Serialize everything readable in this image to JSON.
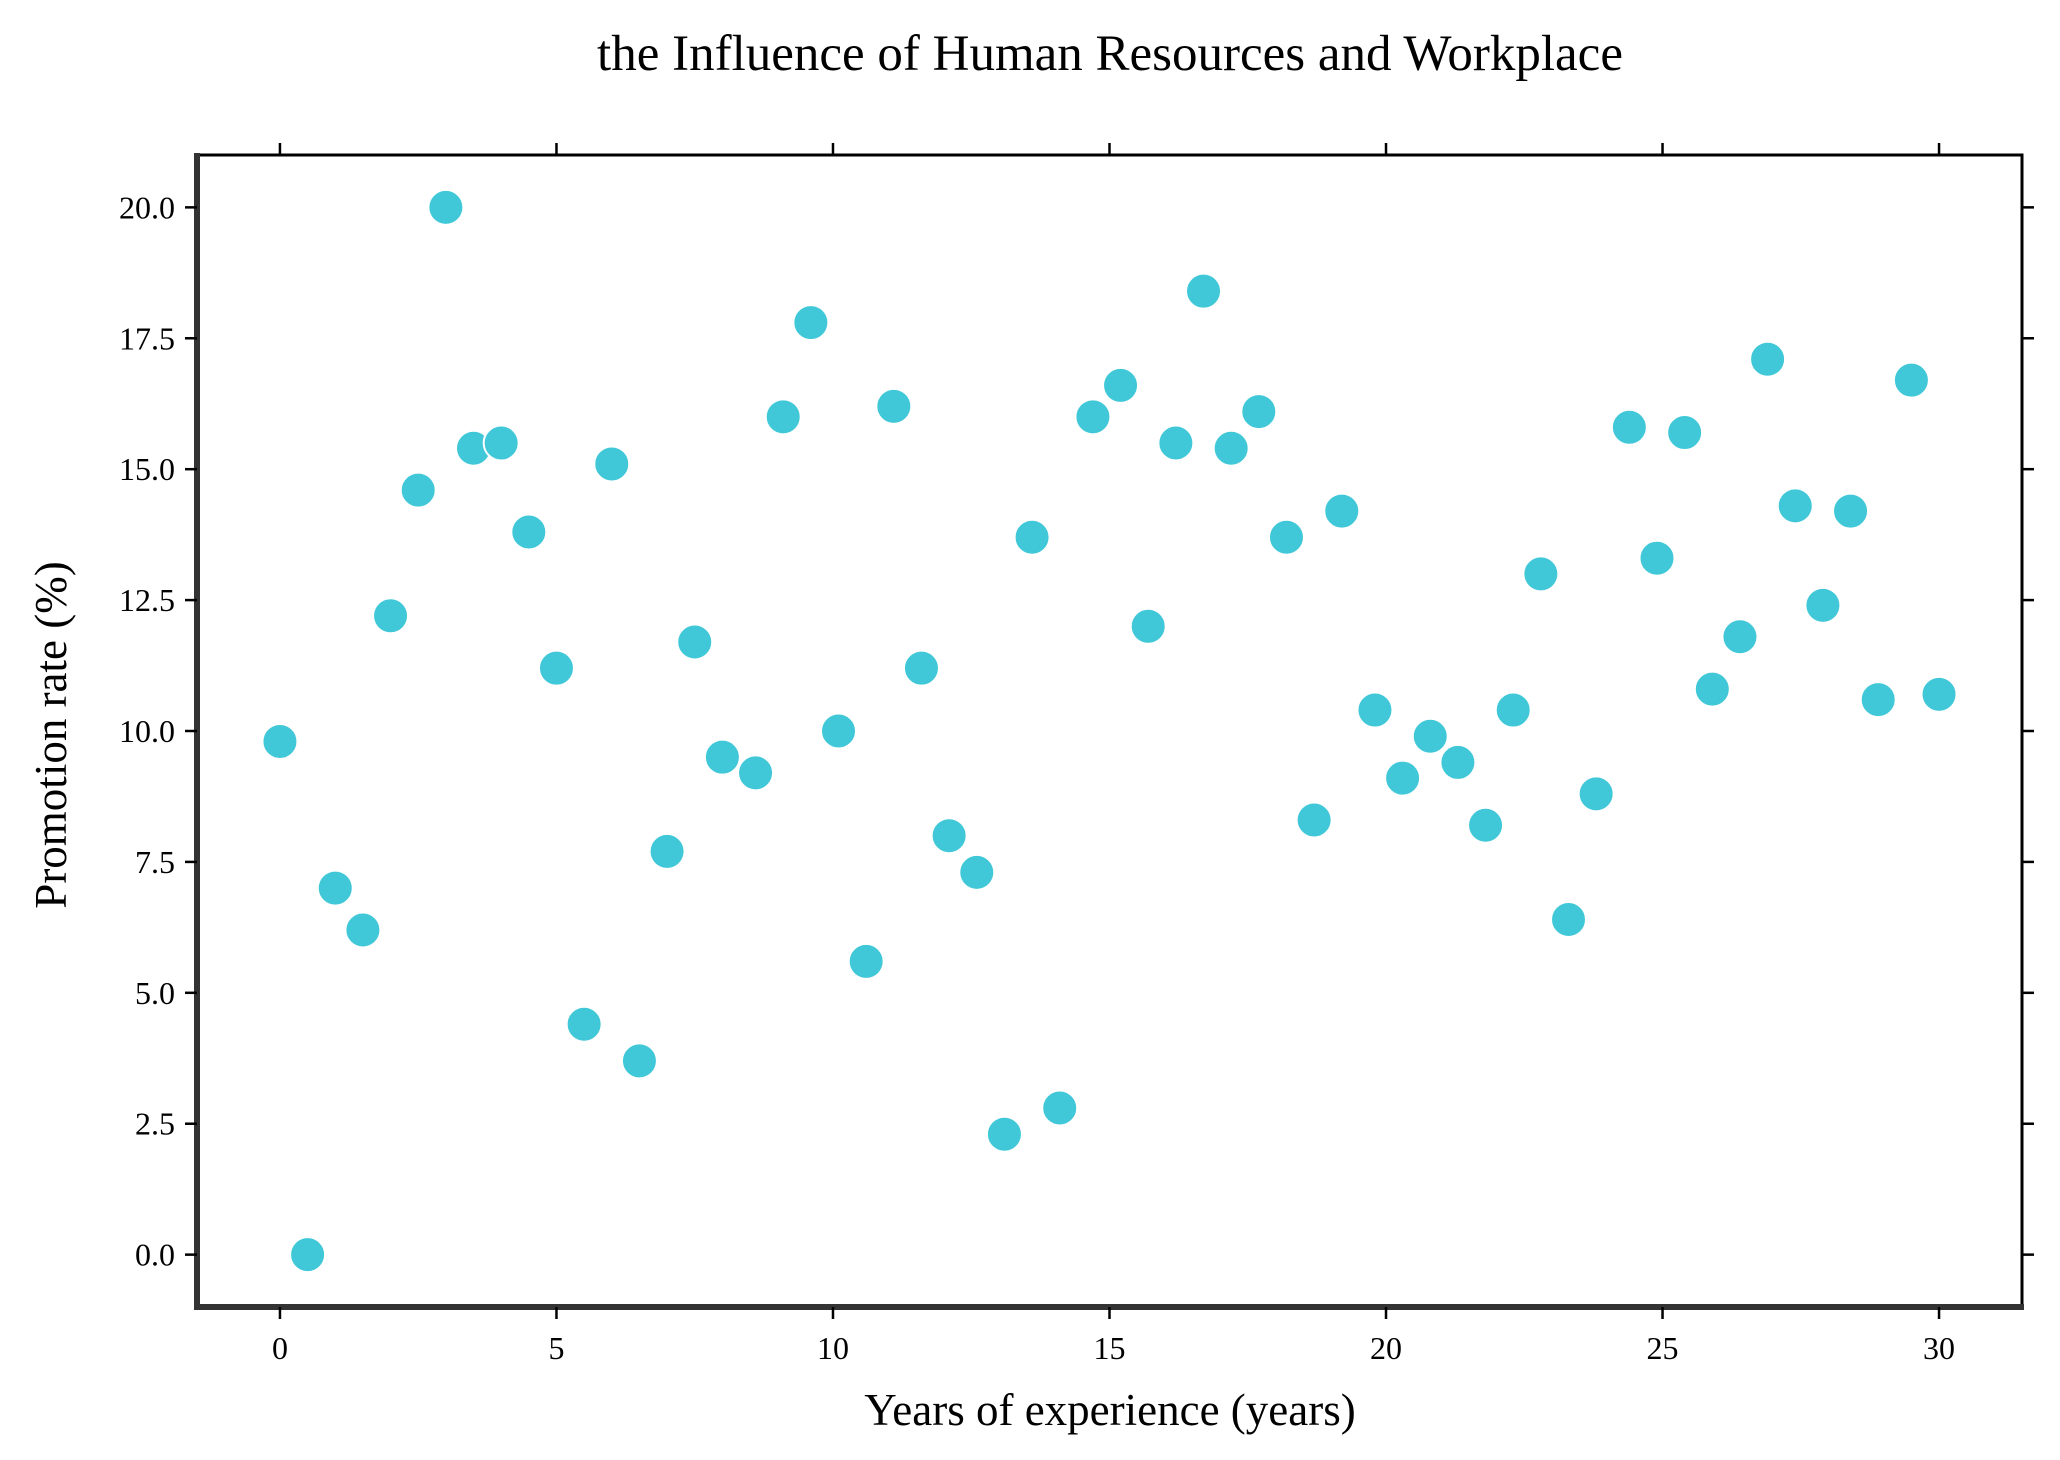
{
  "chart_data": {
    "type": "scatter",
    "title": "the Influence of Human Resources and Workplace",
    "xlabel": "Years of experience (years)",
    "ylabel": "Promotion rate (%)",
    "xlim": [
      -1.5,
      31.5
    ],
    "ylim": [
      -1.0,
      21.0
    ],
    "xticks": [
      0,
      5,
      10,
      15,
      20,
      25,
      30
    ],
    "xtick_labels": [
      "0",
      "5",
      "10",
      "15",
      "20",
      "25",
      "30"
    ],
    "yticks": [
      0,
      2.5,
      5,
      7.5,
      10,
      12.5,
      15,
      17.5,
      20
    ],
    "ytick_labels": [
      "0.0",
      "2.5",
      "5.0",
      "7.5",
      "10.0",
      "12.5",
      "15.0",
      "17.5",
      "20.0"
    ],
    "grid": false,
    "marker_color": "#40c8d8",
    "x": [
      0.0,
      0.5,
      1.0,
      1.5,
      2.0,
      2.5,
      3.0,
      3.5,
      4.0,
      4.5,
      5.0,
      5.5,
      6.0,
      6.5,
      7.0,
      7.5,
      8.0,
      8.6,
      9.1,
      9.6,
      10.1,
      10.6,
      11.1,
      11.6,
      12.1,
      12.6,
      13.1,
      13.6,
      14.1,
      14.7,
      15.2,
      15.7,
      16.2,
      16.7,
      17.2,
      17.7,
      18.2,
      18.7,
      19.2,
      19.8,
      20.3,
      20.8,
      21.3,
      21.8,
      22.3,
      22.8,
      23.3,
      23.8,
      24.4,
      24.9,
      25.4,
      25.9,
      26.4,
      26.9,
      27.4,
      27.9,
      28.4,
      28.9,
      29.5,
      30.0
    ],
    "y": [
      9.8,
      0.0,
      7.0,
      6.2,
      12.2,
      14.6,
      20.0,
      15.4,
      15.5,
      13.8,
      11.2,
      4.4,
      15.1,
      3.7,
      7.7,
      11.7,
      9.5,
      9.2,
      16.0,
      17.8,
      10.0,
      5.6,
      16.2,
      11.2,
      8.0,
      7.3,
      2.3,
      13.7,
      2.8,
      16.0,
      16.6,
      12.0,
      15.5,
      18.4,
      15.4,
      16.1,
      13.7,
      8.3,
      14.2,
      10.4,
      9.1,
      9.9,
      9.4,
      8.2,
      10.4,
      13.0,
      6.4,
      8.8,
      15.8,
      13.3,
      15.7,
      10.8,
      11.8,
      17.1,
      14.3,
      12.4,
      14.2,
      10.6,
      16.7,
      10.7
    ]
  }
}
